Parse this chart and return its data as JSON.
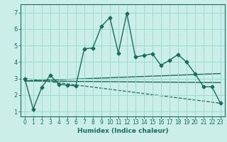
{
  "xlabel": "Humidex (Indice chaleur)",
  "bg_color": "#cceee8",
  "grid_color": "#99ddcc",
  "line_color": "#1a6b5a",
  "xlim": [
    -0.5,
    23.5
  ],
  "ylim": [
    0.7,
    7.5
  ],
  "yticks": [
    1,
    2,
    3,
    4,
    5,
    6,
    7
  ],
  "xticks": [
    0,
    1,
    2,
    3,
    4,
    5,
    6,
    7,
    8,
    9,
    10,
    11,
    12,
    13,
    14,
    15,
    16,
    17,
    18,
    19,
    20,
    21,
    22,
    23
  ],
  "main_series": {
    "x": [
      0,
      1,
      2,
      3,
      4,
      5,
      6,
      7,
      8,
      9,
      10,
      11,
      12,
      13,
      14,
      15,
      16,
      17,
      18,
      19,
      20,
      21,
      22,
      23
    ],
    "y": [
      3.0,
      1.15,
      2.45,
      3.2,
      2.65,
      2.6,
      2.55,
      4.8,
      4.85,
      6.15,
      6.7,
      4.55,
      6.95,
      4.3,
      4.4,
      4.5,
      3.8,
      4.1,
      4.45,
      4.0,
      3.3,
      2.5,
      2.5,
      1.5
    ],
    "marker": "D",
    "linestyle": "-",
    "linewidth": 1.0,
    "markersize": 2.5
  },
  "trend_lines": [
    {
      "x": [
        0,
        23
      ],
      "y": [
        2.85,
        3.3
      ],
      "linestyle": "-",
      "linewidth": 1.0
    },
    {
      "x": [
        0,
        23
      ],
      "y": [
        2.85,
        2.75
      ],
      "linestyle": "-",
      "linewidth": 1.0
    },
    {
      "x": [
        0,
        23
      ],
      "y": [
        3.0,
        1.5
      ],
      "linestyle": "--",
      "linewidth": 0.9
    }
  ]
}
